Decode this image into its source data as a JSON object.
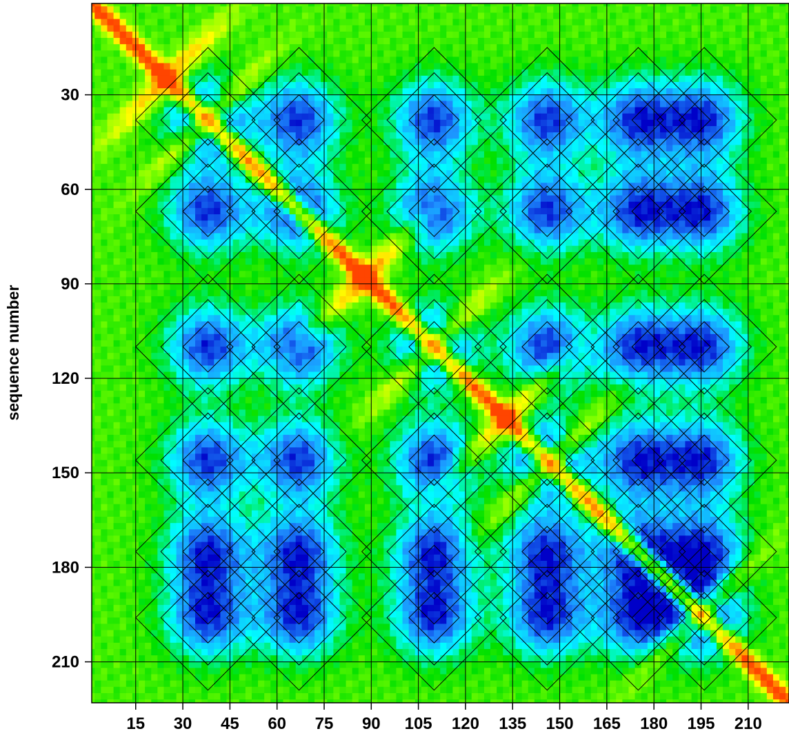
{
  "chart_data": {
    "type": "heatmap",
    "title": "",
    "xlabel": "",
    "ylabel": "sequence number",
    "xlim": [
      1,
      223
    ],
    "ylim": [
      1,
      223
    ],
    "y_inverted": true,
    "grid": true,
    "contours": true,
    "x_ticks": [
      15,
      30,
      45,
      60,
      75,
      90,
      105,
      120,
      135,
      150,
      165,
      180,
      195,
      210
    ],
    "y_ticks": [
      30,
      60,
      90,
      120,
      150,
      180,
      210
    ],
    "colorscale": [
      "#0000c8",
      "#1e90ff",
      "#00ffff",
      "#00e000",
      "#7fff00",
      "#ffff00",
      "#ffa500",
      "#ff4500"
    ],
    "diagonal": "high",
    "high_value_cross_centers": [
      25,
      38,
      88,
      110,
      133,
      147,
      195
    ],
    "low_value_peak_positions": [
      38,
      67,
      110,
      146,
      175,
      196
    ],
    "value_range": [
      0,
      1
    ]
  }
}
